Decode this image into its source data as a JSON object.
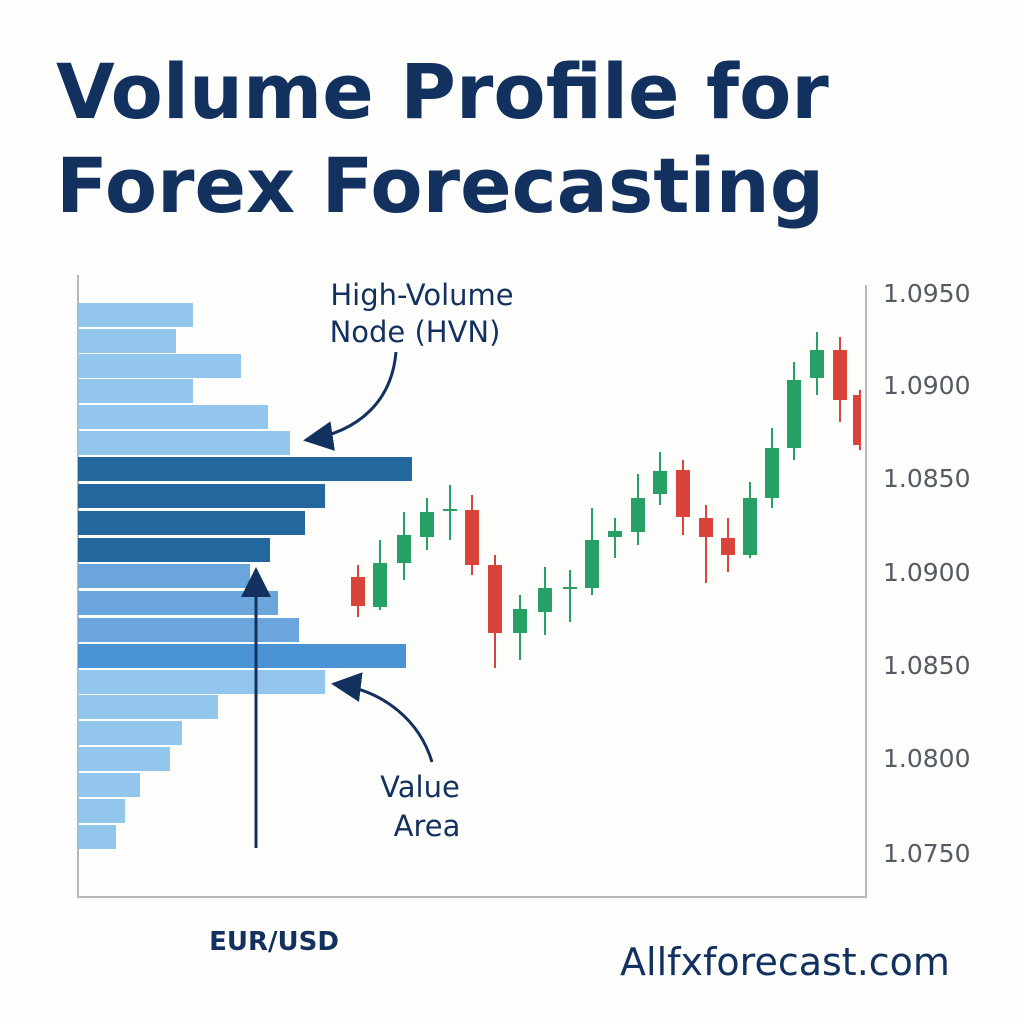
{
  "title_lines": [
    "Volume Profile for",
    "Forex Forecasting"
  ],
  "annotations": {
    "hvn": [
      "High-Volume",
      "Node (HVN)"
    ],
    "value_area": [
      "Value",
      "Area"
    ]
  },
  "price_labels": [
    "1.0950",
    "1.0900",
    "1.0850",
    "1.0900",
    "1.0850",
    "1.0800",
    "1.0750"
  ],
  "pair_label": "EUR/USD",
  "site": "Allfxforecast.com"
}
